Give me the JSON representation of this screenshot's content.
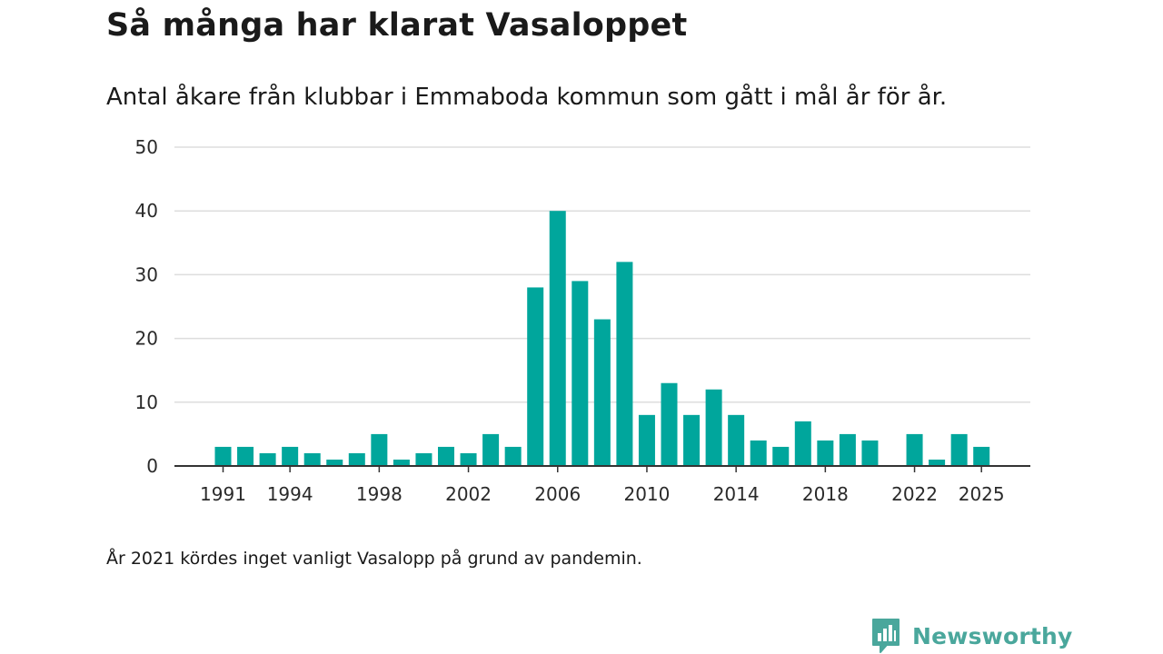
{
  "header": {
    "title": "Så många har klarat Vasaloppet",
    "subtitle": "Antal åkare från klubbar i Emmaboda kommun som gått i mål år för år."
  },
  "footer": {
    "note": "År 2021 kördes inget vanligt Vasalopp på grund av pandemin.",
    "brand": "Newsworthy"
  },
  "colors": {
    "bar": "#00a69c",
    "grid": "#dddddd",
    "axis": "#333333",
    "brand": "#4aa79c"
  },
  "chart_data": {
    "type": "bar",
    "title": "Så många har klarat Vasaloppet",
    "subtitle": "Antal åkare från klubbar i Emmaboda kommun som gått i mål år för år.",
    "xlabel": "",
    "ylabel": "",
    "ylim": [
      0,
      50
    ],
    "yticks": [
      0,
      10,
      20,
      30,
      40,
      50
    ],
    "xticks": [
      1991,
      1994,
      1998,
      2002,
      2006,
      2010,
      2014,
      2018,
      2022,
      2025
    ],
    "grid": true,
    "categories": [
      1991,
      1992,
      1993,
      1994,
      1995,
      1996,
      1997,
      1998,
      1999,
      2000,
      2001,
      2002,
      2003,
      2004,
      2005,
      2006,
      2007,
      2008,
      2009,
      2010,
      2011,
      2012,
      2013,
      2014,
      2015,
      2016,
      2017,
      2018,
      2019,
      2020,
      2021,
      2022,
      2023,
      2024,
      2025
    ],
    "values": [
      3,
      3,
      2,
      3,
      2,
      1,
      2,
      5,
      1,
      2,
      3,
      2,
      5,
      3,
      28,
      40,
      29,
      23,
      32,
      8,
      13,
      8,
      12,
      8,
      4,
      3,
      7,
      4,
      5,
      4,
      null,
      5,
      1,
      5,
      3
    ]
  }
}
